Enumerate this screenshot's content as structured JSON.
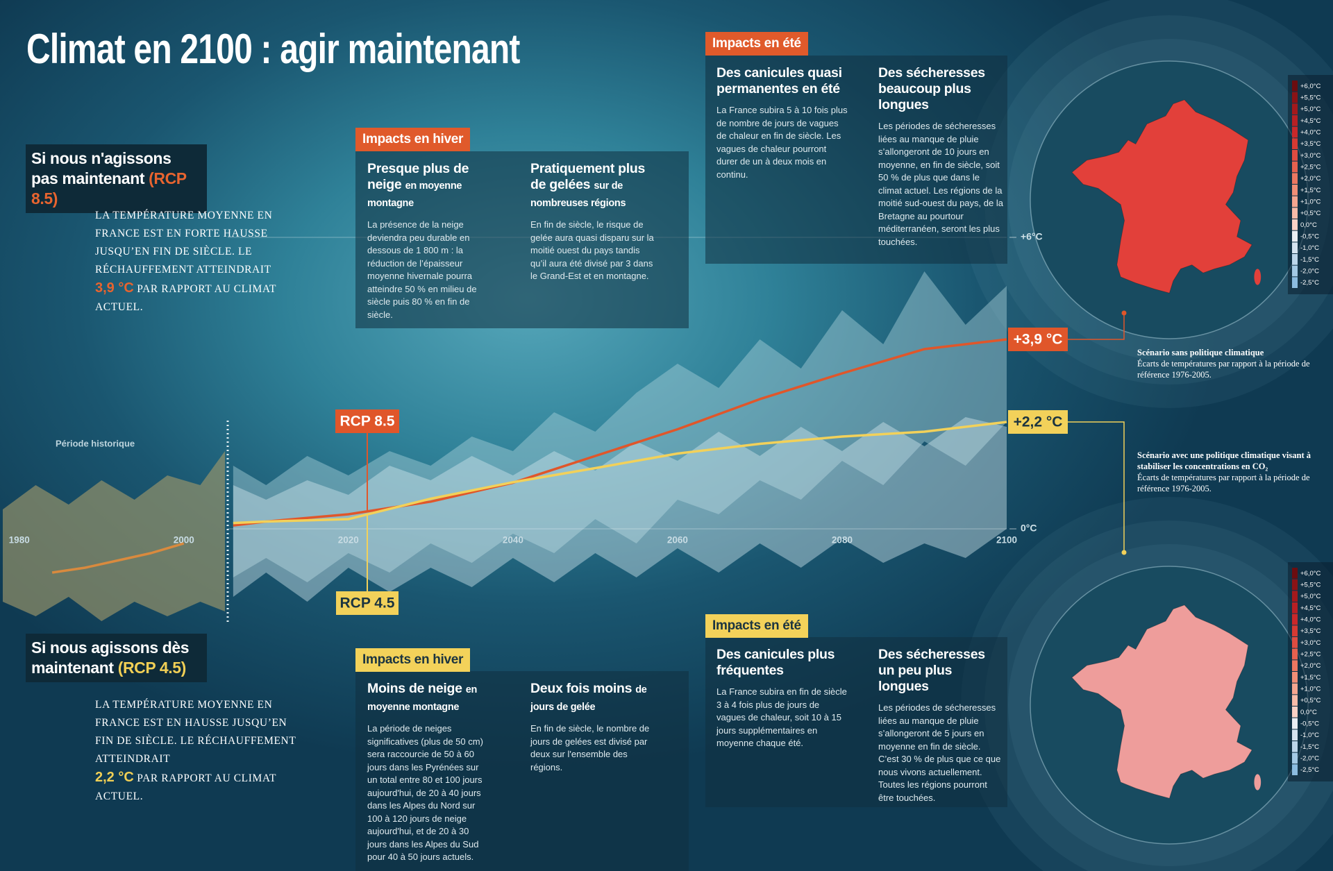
{
  "title": "Climat en 2100 : agir maintenant",
  "scenarios": [
    {
      "heading": "Si nous n'agissons pas maintenant",
      "tag": "(RCP 8.5)",
      "color": "#e8642f",
      "text_before": "LA TEMPÉRATURE MOYENNE EN FRANCE EST EN FORTE HAUSSE JUSQU’EN FIN DE SIÈCLE. LE RÉCHAUFFEMENT ATTEINDRAIT",
      "highlight": "3,9 °C",
      "text_after": "PAR RAPPORT AU CLIMAT ACTUEL."
    },
    {
      "heading": "Si nous agissons dès maintenant",
      "tag": "(RCP 4.5)",
      "color": "#f1cf55",
      "text_before": "LA TEMPÉRATURE MOYENNE EN FRANCE EST EN HAUSSE JUSQU’EN FIN DE SIÈCLE. LE RÉCHAUFFEMENT ATTEINDRAIT",
      "highlight": "2,2 °C",
      "text_after": "PAR RAPPORT AU CLIMAT ACTUEL."
    }
  ],
  "panels": [
    {
      "label": "Impacts en hiver",
      "color": "#e05a2b",
      "text_color": "#ffffff",
      "items": [
        {
          "title": "Presque plus de neige",
          "title_small": "en moyenne montagne",
          "body": "La présence de la neige deviendra peu durable en dessous de 1 800 m : la réduction de l’épaisseur moyenne hivernale pourra atteindre 50 % en milieu de siècle puis 80 % en fin de siècle."
        },
        {
          "title": "Pratiquement plus de gelées",
          "title_small": "sur de nombreuses régions",
          "body": "En fin de siècle, le risque de gelée aura quasi disparu sur la moitié ouest du pays tandis qu’il aura été divisé par 3 dans le Grand-Est et en montagne."
        }
      ]
    },
    {
      "label": "Impacts en été",
      "color": "#e05a2b",
      "text_color": "#ffffff",
      "items": [
        {
          "title": "Des canicules quasi permanentes en été",
          "body": "La France subira 5 à 10 fois plus de nombre de jours de vagues de chaleur en fin de siècle. Les vagues de chaleur pourront durer de un à deux mois en continu."
        },
        {
          "title": "Des sécheresses beaucoup plus longues",
          "body": "Les périodes de sécheresses liées au manque de pluie s’allongeront de 10 jours en moyenne, en fin de siècle, soit 50 % de plus que dans le climat actuel. Les régions de la moitié sud-ouest du pays, de la Bretagne au pourtour méditerranéen, seront les plus touchées."
        }
      ]
    },
    {
      "label": "Impacts en hiver",
      "color": "#f3d25a",
      "text_color": "#1b3440",
      "items": [
        {
          "title": "Moins de neige",
          "title_small": "en moyenne montagne",
          "body": "La période de neiges significatives (plus de 50 cm) sera raccourcie de 50 à 60 jours dans les Pyrénées sur un total entre 80 et 100 jours aujourd'hui, de 20 à 40 jours dans les Alpes du Nord sur 100 à 120 jours de neige aujourd'hui, et de 20 à 30 jours dans les Alpes du Sud pour 40 à 50 jours actuels."
        },
        {
          "title": "Deux fois moins",
          "title_small": "de jours de gelée",
          "body": "En fin de siècle, le nombre de jours de gelées est divisé par deux sur l'ensemble des régions."
        }
      ]
    },
    {
      "label": "Impacts en été",
      "color": "#f3d25a",
      "text_color": "#1b3440",
      "items": [
        {
          "title": "Des canicules plus fréquentes",
          "body": "La France subira en fin de siècle 3 à 4 fois plus de jours de vagues de chaleur, soit 10 à 15 jours supplémentaires en moyenne chaque été."
        },
        {
          "title": "Des sécheresses un peu plus longues",
          "body": "Les périodes de sécheresses liées au manque de pluie s’allongeront de 5 jours en moyenne en fin de siècle. C’est 30 % de plus que ce que nous vivons actuellement. Toutes les régions pourront être touchées."
        }
      ]
    }
  ],
  "maps": [
    {
      "fill": "#e2403a",
      "caption_title": "Scénario sans politique climatique",
      "caption_text": "Écarts de températures par rapport à la période de référence 1976-2005."
    },
    {
      "fill": "#ee9d9b",
      "caption_title": "Scénario avec une politique climatique visant à stabiliser les concentrations en CO₂",
      "caption_text": "Écarts de températures par rapport à la période de référence 1976-2005."
    }
  ],
  "map_scale": {
    "labels": [
      "+6,0°C",
      "+5,5°C",
      "+5,0°C",
      "+4,5°C",
      "+4,0°C",
      "+3,5°C",
      "+3,0°C",
      "+2,5°C",
      "+2,0°C",
      "+1,5°C",
      "+1,0°C",
      "+0,5°C",
      "0,0°C",
      "-0,5°C",
      "-1,0°C",
      "-1,5°C",
      "-2,0°C",
      "-2,5°C"
    ],
    "colors": [
      "#6b0d10",
      "#8a1316",
      "#a3191c",
      "#b82024",
      "#c9282a",
      "#d63a33",
      "#de4c41",
      "#e5614f",
      "#eb7761",
      "#f08e76",
      "#f4a58f",
      "#f7bba8",
      "#f9d1c5",
      "#e9eef3",
      "#d4e3ef",
      "#bcd6ea",
      "#a3c9e4",
      "#8bbce0"
    ]
  },
  "chart_data": {
    "type": "line",
    "xlim": [
      1978,
      2100
    ],
    "xticks": [
      1980,
      2000,
      2020,
      2040,
      2060,
      2080,
      2100
    ],
    "ylim": [
      -2,
      6
    ],
    "yticks": [
      {
        "value": 6,
        "label": "+6°C"
      },
      {
        "value": 0,
        "label": "0°C"
      }
    ],
    "grid": true,
    "series": [
      {
        "name": "Période historique",
        "color": "#d98a3e",
        "x": [
          1984,
          1988,
          1992,
          1996,
          2000
        ],
        "values": [
          -0.9,
          -0.8,
          -0.65,
          -0.5,
          -0.3
        ]
      },
      {
        "name": "RCP 8.5",
        "color": "#e0562a",
        "label_text_color": "#ffffff",
        "x": [
          2006,
          2010,
          2020,
          2030,
          2040,
          2050,
          2060,
          2070,
          2080,
          2090,
          2100
        ],
        "values": [
          0.07,
          0.15,
          0.3,
          0.56,
          0.95,
          1.5,
          2.05,
          2.67,
          3.2,
          3.7,
          3.9
        ],
        "value_labels": [
          null,
          null,
          null,
          null,
          null,
          null,
          null,
          null,
          null,
          null,
          "+3,9 °C"
        ]
      },
      {
        "name": "RCP 4.5",
        "color": "#f2d15a",
        "label_text_color": "#1b3440",
        "x": [
          2006,
          2010,
          2020,
          2030,
          2040,
          2050,
          2060,
          2070,
          2080,
          2090,
          2100
        ],
        "values": [
          0.12,
          0.15,
          0.2,
          0.62,
          0.96,
          1.25,
          1.55,
          1.75,
          1.9,
          2.0,
          2.2
        ],
        "value_labels": [
          null,
          null,
          null,
          null,
          null,
          null,
          null,
          null,
          null,
          null,
          "+2,2 °C"
        ]
      }
    ],
    "bands": [
      {
        "color": "#9c976a",
        "x": [
          1978,
          1982,
          1986,
          1990,
          1994,
          1998,
          2002,
          2005
        ],
        "upper": [
          0.4,
          0.9,
          0.5,
          1.0,
          0.6,
          1.1,
          0.9,
          1.6
        ],
        "lower": [
          -1.5,
          -1.8,
          -1.4,
          -1.9,
          -1.5,
          -1.8,
          -1.5,
          -1.7
        ]
      },
      {
        "color": "#a9d0da",
        "x": [
          2006,
          2010,
          2015,
          2020,
          2025,
          2030,
          2035,
          2040,
          2045,
          2050,
          2055,
          2060,
          2065,
          2070,
          2075,
          2080,
          2085,
          2090,
          2095,
          2100
        ],
        "upper": [
          1.3,
          0.9,
          1.5,
          1.1,
          1.6,
          1.3,
          1.9,
          1.6,
          2.4,
          2.0,
          2.8,
          3.4,
          2.9,
          3.9,
          3.3,
          4.5,
          3.8,
          5.3,
          4.2,
          5.0
        ],
        "lower": [
          -1.0,
          -0.6,
          -1.1,
          -0.5,
          -0.9,
          -0.3,
          -0.7,
          -0.1,
          -0.5,
          0.2,
          -0.3,
          0.6,
          0.3,
          1.0,
          0.6,
          1.4,
          0.9,
          1.8,
          1.3,
          2.2
        ]
      },
      {
        "color": "#cfe4ea",
        "x": [
          2006,
          2010,
          2015,
          2020,
          2025,
          2030,
          2035,
          2040,
          2045,
          2050,
          2055,
          2060,
          2065,
          2070,
          2075,
          2080,
          2085,
          2090,
          2095,
          2100
        ],
        "upper": [
          0.9,
          0.6,
          1.0,
          0.7,
          1.3,
          1.0,
          1.5,
          1.1,
          1.6,
          1.2,
          1.8,
          1.4,
          2.0,
          1.5,
          2.1,
          1.6,
          2.2,
          1.7,
          2.3,
          2.1
        ],
        "lower": [
          -1.4,
          -0.9,
          -1.5,
          -0.8,
          -1.3,
          -0.8,
          -1.2,
          -0.6,
          -1.1,
          -0.5,
          -1.0,
          -0.4,
          -0.9,
          -0.3,
          -0.8,
          -0.2,
          -0.7,
          -0.3,
          -0.6,
          0.0
        ]
      }
    ]
  }
}
